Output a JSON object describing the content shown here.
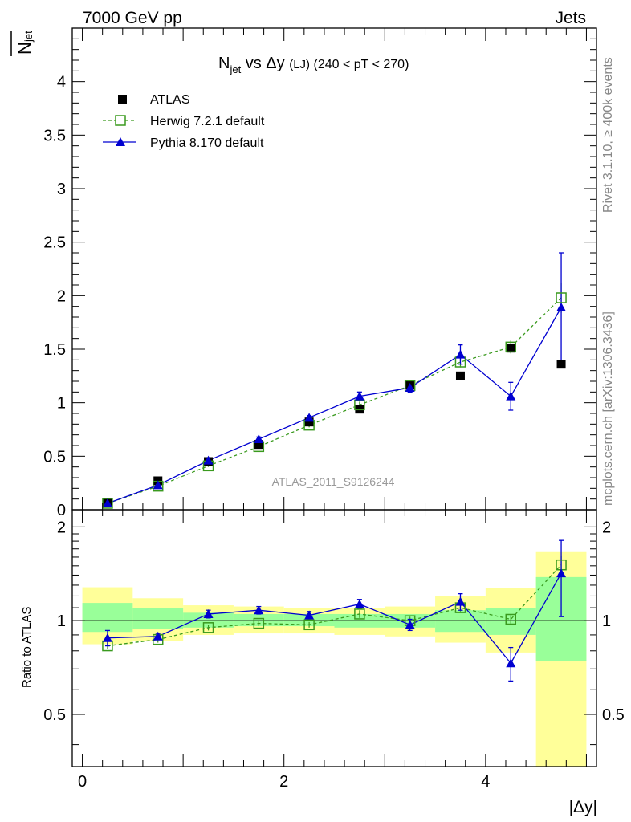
{
  "header": {
    "left_label": "7000 GeV pp",
    "right_label": "Jets"
  },
  "side_labels": {
    "rivet": "Rivet 3.1.10, ≥ 400k events",
    "mcplots": "mcplots.cern.ch [arXiv:1306.3436]"
  },
  "watermark": "ATLAS_2011_S9126244",
  "chart_data": [
    {
      "type": "scatter",
      "panel": "main",
      "title": "N_jet vs Δy (LJ) (240 < pT < 270)",
      "title_parts": {
        "n": "N",
        "sub": "jet",
        "vs": " vs Δy ",
        "lj": "(LJ)",
        "range": " (240 < pT < 270)"
      },
      "ylabel_main": "N",
      "ylabel_sub": "jet",
      "xlim": [
        -0.1,
        5.1
      ],
      "ylim": [
        0,
        4.5
      ],
      "y_ticks": [
        0,
        0.5,
        1,
        1.5,
        2,
        2.5,
        3,
        3.5,
        4
      ],
      "y_tick_labels": [
        "0",
        "0.5",
        "1",
        "1.5",
        "2",
        "2.5",
        "3",
        "3.5",
        "4"
      ],
      "x": [
        0.25,
        0.75,
        1.25,
        1.75,
        2.25,
        2.75,
        3.25,
        3.75,
        4.25,
        4.75
      ],
      "series": [
        {
          "name": "ATLAS",
          "marker": "filled-square",
          "color": "#000000",
          "values": [
            0.07,
            0.27,
            0.45,
            0.61,
            0.82,
            0.94,
            1.17,
            1.25,
            1.51,
            1.36
          ]
        },
        {
          "name": "Herwig 7.2.1 default",
          "marker": "open-square",
          "line": "dashed",
          "color": "#3a9a1e",
          "values": [
            0.06,
            0.22,
            0.41,
            0.59,
            0.79,
            0.98,
            1.16,
            1.38,
            1.52,
            1.98
          ],
          "errors": [
            0.01,
            0.01,
            0.01,
            0.01,
            0.02,
            0.03,
            0.03,
            0.05,
            0.06,
            0.14
          ]
        },
        {
          "name": "Pythia 8.170 default",
          "marker": "filled-triangle",
          "line": "solid",
          "color": "#0000d0",
          "values": [
            0.06,
            0.23,
            0.46,
            0.66,
            0.86,
            1.06,
            1.14,
            1.45,
            1.06,
            1.89
          ],
          "errors": [
            0.01,
            0.01,
            0.01,
            0.02,
            0.02,
            0.04,
            0.04,
            0.09,
            0.13,
            0.51
          ]
        }
      ]
    },
    {
      "type": "scatter",
      "panel": "ratio",
      "ylabel": "Ratio to ATLAS",
      "xlabel": "|Δy|",
      "xlim": [
        -0.1,
        5.1
      ],
      "ylim": [
        0.34,
        2.27
      ],
      "y_ticks": [
        0.5,
        1,
        2
      ],
      "y_tick_labels": [
        "0.5",
        "1",
        "2"
      ],
      "x_ticks": [
        0,
        2,
        4
      ],
      "x_tick_labels": [
        "0",
        "2",
        "4"
      ],
      "reference_line": 1,
      "bin_edges": [
        0,
        0.5,
        1,
        1.5,
        2,
        2.5,
        3,
        3.5,
        4,
        4.5,
        5
      ],
      "band_stat": [
        [
          0.92,
          1.14
        ],
        [
          0.94,
          1.1
        ],
        [
          0.95,
          1.06
        ],
        [
          0.96,
          1.05
        ],
        [
          0.96,
          1.05
        ],
        [
          0.95,
          1.05
        ],
        [
          0.95,
          1.05
        ],
        [
          0.92,
          1.08
        ],
        [
          0.9,
          1.1
        ],
        [
          0.74,
          1.38
        ]
      ],
      "band_total": [
        [
          0.84,
          1.28
        ],
        [
          0.86,
          1.18
        ],
        [
          0.9,
          1.12
        ],
        [
          0.91,
          1.11
        ],
        [
          0.91,
          1.1
        ],
        [
          0.9,
          1.1
        ],
        [
          0.89,
          1.11
        ],
        [
          0.85,
          1.2
        ],
        [
          0.79,
          1.27
        ],
        [
          0.34,
          1.66
        ]
      ],
      "x": [
        0.25,
        0.75,
        1.25,
        1.75,
        2.25,
        2.75,
        3.25,
        3.75,
        4.25,
        4.75
      ],
      "series": [
        {
          "name": "Herwig 7.2.1 default",
          "values": [
            0.83,
            0.87,
            0.95,
            0.98,
            0.97,
            1.05,
            1.0,
            1.1,
            1.01,
            1.51
          ],
          "errors": [
            0.02,
            0.02,
            0.02,
            0.02,
            0.02,
            0.03,
            0.03,
            0.03,
            0.03,
            0.1
          ]
        },
        {
          "name": "Pythia 8.170 default",
          "values": [
            0.88,
            0.89,
            1.05,
            1.08,
            1.04,
            1.13,
            0.97,
            1.15,
            0.73,
            1.42
          ],
          "errors": [
            0.05,
            0.02,
            0.03,
            0.03,
            0.03,
            0.04,
            0.04,
            0.07,
            0.09,
            0.39
          ]
        }
      ]
    }
  ]
}
